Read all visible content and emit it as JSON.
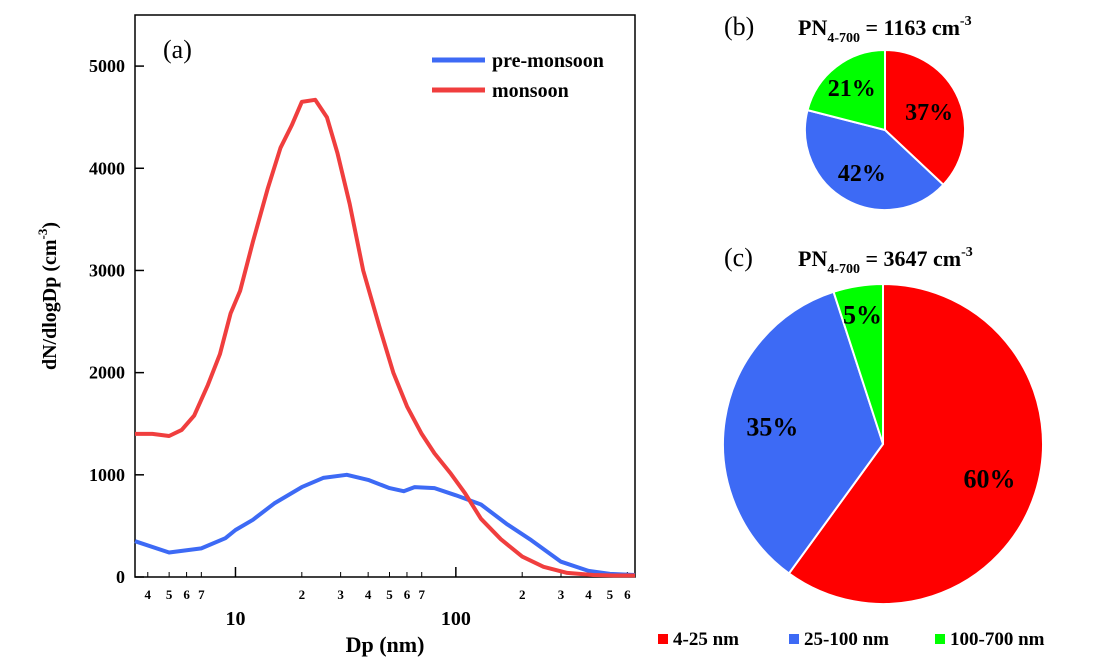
{
  "chart_data": [
    {
      "type": "line",
      "panel_label": "(a)",
      "xlabel": "Dp (nm)",
      "ylabel": "dN/dlogDp (cm",
      "ylabel_sup": "-3",
      "ylabel_close": ")",
      "x_scale": "log",
      "xlim": [
        3.5,
        650
      ],
      "ylim": [
        0,
        5500
      ],
      "y_ticks": [
        0,
        1000,
        2000,
        3000,
        4000,
        5000
      ],
      "x_major_ticks": [
        {
          "value": 10,
          "label": "10"
        },
        {
          "value": 100,
          "label": "100"
        }
      ],
      "x_minor_ticks": [
        {
          "value": 4,
          "label": "4"
        },
        {
          "value": 5,
          "label": "5"
        },
        {
          "value": 6,
          "label": "6"
        },
        {
          "value": 7,
          "label": "7"
        },
        {
          "value": 20,
          "label": "2"
        },
        {
          "value": 30,
          "label": "3"
        },
        {
          "value": 40,
          "label": "4"
        },
        {
          "value": 50,
          "label": "5"
        },
        {
          "value": 60,
          "label": "6"
        },
        {
          "value": 70,
          "label": "7"
        },
        {
          "value": 200,
          "label": "2"
        },
        {
          "value": 300,
          "label": "3"
        },
        {
          "value": 400,
          "label": "4"
        },
        {
          "value": 500,
          "label": "5"
        },
        {
          "value": 600,
          "label": "6"
        }
      ],
      "legend_position": "top-right",
      "series": [
        {
          "name": "pre-monsoon",
          "color": "#3d6af5",
          "x": [
            3.5,
            5,
            7,
            9,
            10,
            12,
            15,
            20,
            25,
            32,
            40,
            50,
            58,
            65,
            80,
            100,
            130,
            170,
            220,
            300,
            400,
            500,
            650
          ],
          "y": [
            350,
            240,
            280,
            380,
            460,
            560,
            720,
            880,
            970,
            1000,
            950,
            870,
            840,
            880,
            870,
            800,
            710,
            520,
            360,
            150,
            60,
            30,
            20
          ]
        },
        {
          "name": "monsoon",
          "color": "#f03e3e",
          "x": [
            3.5,
            4.2,
            5,
            5.7,
            6.5,
            7.5,
            8.5,
            9.5,
            10.5,
            12,
            14,
            16,
            18,
            20,
            23,
            26,
            29,
            33,
            38,
            45,
            52,
            60,
            70,
            80,
            95,
            110,
            130,
            160,
            200,
            250,
            320,
            420,
            520,
            650
          ],
          "y": [
            1400,
            1400,
            1380,
            1440,
            1580,
            1880,
            2180,
            2580,
            2800,
            3280,
            3800,
            4200,
            4420,
            4650,
            4670,
            4500,
            4150,
            3650,
            3000,
            2450,
            2000,
            1670,
            1400,
            1210,
            1010,
            820,
            570,
            370,
            200,
            100,
            40,
            20,
            15,
            15
          ]
        }
      ]
    },
    {
      "type": "pie",
      "panel_label": "(b)",
      "title_prefix": "PN",
      "title_sub": "4-700",
      "title_value": " = 1163 cm",
      "title_sup": "-3",
      "categories": [
        "4-25 nm",
        "25-100 nm",
        "100-700 nm"
      ],
      "values": [
        37,
        42,
        21
      ],
      "labels": [
        "37%",
        "42%",
        "21%"
      ],
      "colors": [
        "#ff0000",
        "#3d6af5",
        "#00ff00"
      ]
    },
    {
      "type": "pie",
      "panel_label": "(c)",
      "title_prefix": "PN",
      "title_sub": "4-700",
      "title_value": " = 3647 cm",
      "title_sup": "-3",
      "categories": [
        "4-25 nm",
        "25-100 nm",
        "100-700 nm"
      ],
      "values": [
        60,
        35,
        5
      ],
      "labels": [
        "60%",
        "35%",
        "5%"
      ],
      "colors": [
        "#ff0000",
        "#3d6af5",
        "#00ff00"
      ]
    }
  ],
  "pie_legend": [
    {
      "label": "4-25 nm",
      "color": "#ff0000"
    },
    {
      "label": "25-100 nm",
      "color": "#3d6af5"
    },
    {
      "label": "100-700 nm",
      "color": "#00ff00"
    }
  ]
}
